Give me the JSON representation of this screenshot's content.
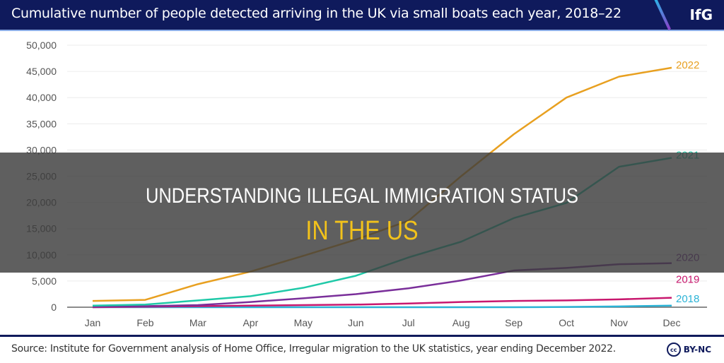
{
  "header": {
    "title": "Cumulative number of people detected arriving in the UK via small boats each year, 2018–22",
    "logo": "IfG"
  },
  "footer": {
    "source": "Source: Institute for Government analysis of Home Office,  Irregular migration to the UK statistics, year ending December 2022.",
    "license": "BY-NC",
    "license_icon": "cc-icon"
  },
  "overlay": {
    "line1": "UNDERSTANDING ILLEGAL IMMIGRATION STATUS",
    "line2": "IN THE US",
    "line2_color": "#f2c21b"
  },
  "chart_data": {
    "type": "line",
    "title": "Cumulative number of people detected arriving in the UK via small boats each year, 2018–22",
    "categories": [
      "Jan",
      "Feb",
      "Mar",
      "Apr",
      "May",
      "Jun",
      "Jul",
      "Aug",
      "Sep",
      "Oct",
      "Nov",
      "Dec"
    ],
    "ylim": [
      0,
      50000
    ],
    "yticks": [
      "0",
      "5,000",
      "10,000",
      "15,000",
      "20,000",
      "25,000",
      "30,000",
      "35,000",
      "40,000",
      "45,000",
      "50,000"
    ],
    "grid": true,
    "series": [
      {
        "name": "2018",
        "color": "#2bb3d6",
        "values": [
          0,
          0,
          0,
          0,
          0,
          0,
          0,
          0,
          0,
          50,
          150,
          300
        ]
      },
      {
        "name": "2019",
        "color": "#c8186e",
        "values": [
          0,
          100,
          200,
          300,
          400,
          500,
          700,
          1000,
          1200,
          1300,
          1500,
          1800
        ]
      },
      {
        "name": "2020",
        "color": "#7a2f9a",
        "values": [
          100,
          200,
          400,
          1000,
          1700,
          2500,
          3600,
          5100,
          7000,
          7500,
          8200,
          8400
        ]
      },
      {
        "name": "2021",
        "color": "#1fc9a8",
        "values": [
          300,
          500,
          1300,
          2100,
          3700,
          6000,
          9500,
          12500,
          17000,
          19900,
          26800,
          28500
        ]
      },
      {
        "name": "2022",
        "color": "#e8a020",
        "values": [
          1200,
          1400,
          4400,
          6800,
          9800,
          12900,
          16500,
          25000,
          33000,
          40000,
          44000,
          45700
        ]
      }
    ]
  }
}
